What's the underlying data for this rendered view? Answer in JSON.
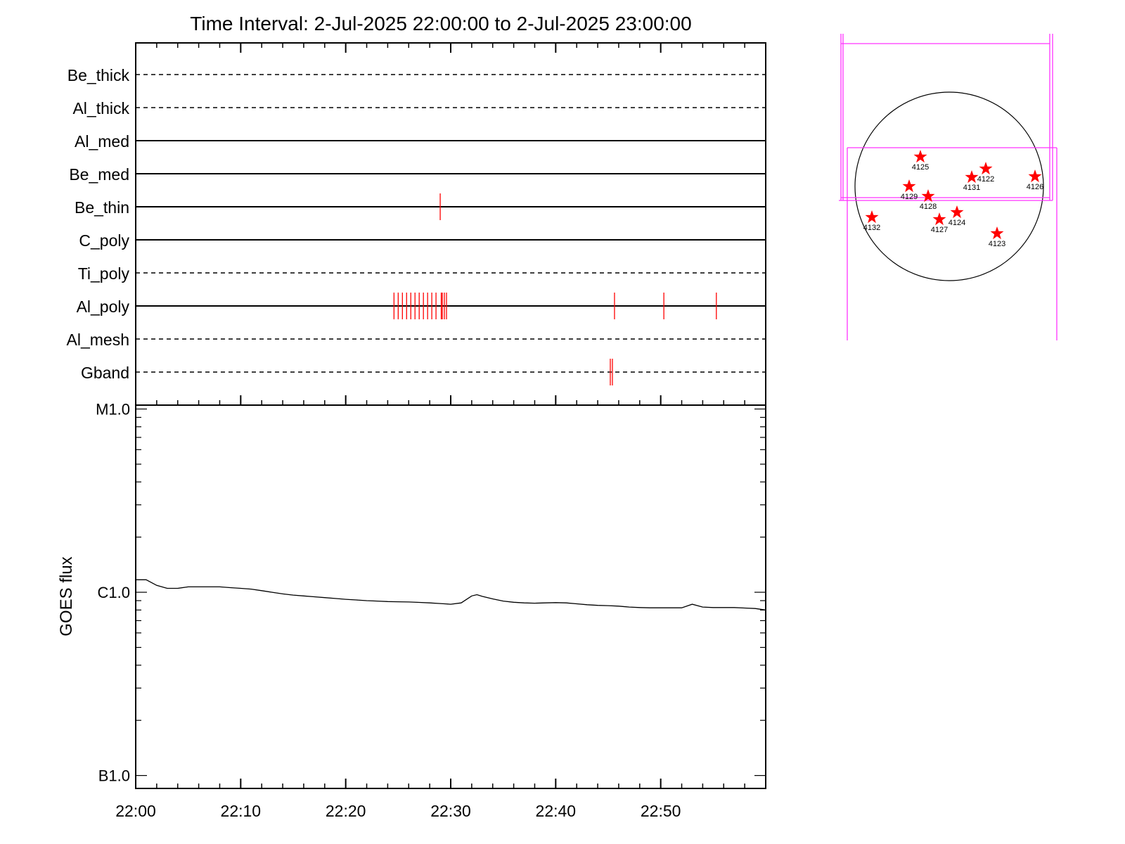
{
  "title": "Time Interval:  2-Jul-2025 22:00:00 to  2-Jul-2025 23:00:00",
  "colors": {
    "events": "#ff0000",
    "boxes": "#ff33ff",
    "axis": "#000000",
    "background": "#ffffff"
  },
  "chart_data": [
    {
      "type": "timeline",
      "x_range_minutes": [
        0,
        60
      ],
      "xtick_labels": [
        "22:00",
        "22:10",
        "22:20",
        "22:30",
        "22:40",
        "22:50"
      ],
      "xtick_minutes": [
        0,
        10,
        20,
        30,
        40,
        50
      ],
      "channels": [
        {
          "name": "Be_thick",
          "line": "dashed",
          "events": []
        },
        {
          "name": "Al_thick",
          "line": "dashed",
          "events": []
        },
        {
          "name": "Al_med",
          "line": "solid",
          "events": []
        },
        {
          "name": "Be_med",
          "line": "solid",
          "events": []
        },
        {
          "name": "Be_thin",
          "line": "solid",
          "events": [
            29.0
          ]
        },
        {
          "name": "C_poly",
          "line": "solid",
          "events": []
        },
        {
          "name": "Ti_poly",
          "line": "dashed",
          "events": []
        },
        {
          "name": "Al_poly",
          "line": "solid",
          "events": [
            24.6,
            25.0,
            25.4,
            25.8,
            26.2,
            26.6,
            27.0,
            27.4,
            27.8,
            28.2,
            28.6,
            29.1,
            29.2,
            29.4,
            29.6,
            45.6,
            50.3,
            55.3
          ]
        },
        {
          "name": "Al_mesh",
          "line": "dashed",
          "events": []
        },
        {
          "name": "Gband",
          "line": "dashed",
          "events": [
            45.2,
            45.4
          ]
        }
      ]
    },
    {
      "type": "line",
      "ylabel": "GOES flux",
      "y_scale": "log",
      "ytick_labels": [
        "M1.0",
        "C1.0",
        "B1.0"
      ],
      "ytick_values": [
        1e-05,
        1e-06,
        1e-07
      ],
      "x_range_minutes": [
        0,
        60
      ],
      "y_range": [
        8.5e-08,
        1.05e-05
      ],
      "xtick_labels": [
        "22:00",
        "22:10",
        "22:20",
        "22:30",
        "22:40",
        "22:50"
      ],
      "xtick_minutes": [
        0,
        10,
        20,
        30,
        40,
        50
      ],
      "series": [
        {
          "x": [
            0,
            1,
            2,
            3,
            4,
            5,
            6,
            7,
            8,
            9,
            10,
            11,
            12,
            13,
            14,
            15,
            16,
            17,
            18,
            19,
            20,
            21,
            22,
            23,
            24,
            25,
            26,
            27,
            28,
            29,
            30,
            31,
            32,
            32.5,
            33,
            34,
            35,
            36,
            37,
            38,
            39,
            40,
            41,
            42,
            43,
            44,
            45,
            46,
            47,
            48,
            49,
            50,
            51,
            52,
            53,
            54,
            55,
            56,
            57,
            58,
            59,
            60
          ],
          "y": [
            1.17e-06,
            1.17e-06,
            1.09e-06,
            1.05e-06,
            1.05e-06,
            1.07e-06,
            1.07e-06,
            1.07e-06,
            1.07e-06,
            1.06e-06,
            1.05e-06,
            1.04e-06,
            1.02e-06,
            1e-06,
            9.8e-07,
            9.65e-07,
            9.55e-07,
            9.45e-07,
            9.35e-07,
            9.25e-07,
            9.15e-07,
            9.08e-07,
            9e-07,
            8.95e-07,
            8.9e-07,
            8.87e-07,
            8.85e-07,
            8.8e-07,
            8.75e-07,
            8.68e-07,
            8.6e-07,
            8.75e-07,
            9.55e-07,
            9.7e-07,
            9.5e-07,
            9.2e-07,
            8.95e-07,
            8.82e-07,
            8.75e-07,
            8.72e-07,
            8.75e-07,
            8.78e-07,
            8.75e-07,
            8.65e-07,
            8.55e-07,
            8.48e-07,
            8.45e-07,
            8.4e-07,
            8.3e-07,
            8.25e-07,
            8.22e-07,
            8.22e-07,
            8.22e-07,
            8.22e-07,
            8.6e-07,
            8.3e-07,
            8.25e-07,
            8.25e-07,
            8.25e-07,
            8.2e-07,
            8.15e-07,
            8e-07
          ]
        }
      ]
    }
  ],
  "solar_map": {
    "regions": [
      {
        "label": "4125"
      },
      {
        "label": "4122"
      },
      {
        "label": "4131"
      },
      {
        "label": "4126"
      },
      {
        "label": "4129"
      },
      {
        "label": "4128"
      },
      {
        "label": "4132"
      },
      {
        "label": "4124"
      },
      {
        "label": "4127"
      },
      {
        "label": "4123"
      }
    ]
  }
}
